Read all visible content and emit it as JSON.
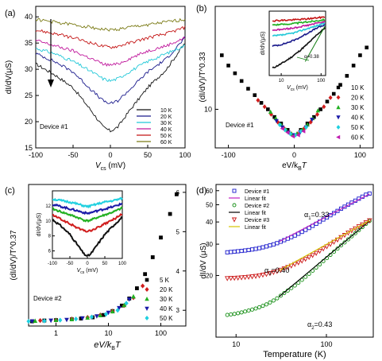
{
  "chart_data": [
    {
      "panel": "(a)",
      "type": "line",
      "xlabel_main": "V",
      "xlabel_sub": "cs",
      "xlabel_unit": " (mV)",
      "ylabel": "dI/dV(μS)",
      "xlim": [
        -100,
        100
      ],
      "ylim": [
        15,
        42
      ],
      "xticks": [
        -100,
        -50,
        0,
        50,
        100
      ],
      "yticks": [
        15,
        20,
        25,
        30,
        35,
        40
      ],
      "annotation": "Device #1",
      "arrow": "downward arrow indicating decreasing temperature",
      "legend_position": "bottom-right",
      "series": [
        {
          "name": "10 K",
          "color": "#111111",
          "x": [
            -100,
            -75,
            -50,
            -25,
            -10,
            0,
            10,
            25,
            50,
            75,
            100
          ],
          "y": [
            31,
            29,
            26.5,
            22,
            19,
            18.2,
            19,
            22,
            26.5,
            30,
            35
          ]
        },
        {
          "name": "20 K",
          "color": "#1a1a8c",
          "x": [
            -100,
            -75,
            -50,
            -25,
            -10,
            0,
            10,
            25,
            50,
            75,
            100
          ],
          "y": [
            33,
            31.5,
            29.5,
            26,
            24,
            23.4,
            24,
            26,
            29.5,
            32,
            36
          ]
        },
        {
          "name": "30 K",
          "color": "#22c8d8",
          "x": [
            -100,
            -75,
            -50,
            -25,
            -10,
            0,
            10,
            25,
            50,
            75,
            100
          ],
          "y": [
            34,
            33,
            31.5,
            29.5,
            28.2,
            27.8,
            28.2,
            29.5,
            31.5,
            33,
            34.5
          ]
        },
        {
          "name": "40 K",
          "color": "#c0189c",
          "x": [
            -100,
            -75,
            -50,
            -25,
            -10,
            0,
            10,
            25,
            50,
            75,
            100
          ],
          "y": [
            35.5,
            34.5,
            33.5,
            32,
            31,
            30.8,
            31,
            32,
            33.5,
            34.5,
            36
          ]
        },
        {
          "name": "50 K",
          "color": "#c41414",
          "x": [
            -100,
            -75,
            -50,
            -25,
            -10,
            0,
            10,
            25,
            50,
            75,
            100
          ],
          "y": [
            37.5,
            36.8,
            36,
            35,
            34.4,
            34.2,
            34.4,
            35,
            36,
            36.8,
            38
          ]
        },
        {
          "name": "60 K",
          "color": "#7a7a14",
          "x": [
            -100,
            -75,
            -50,
            -25,
            -10,
            0,
            10,
            25,
            50,
            75,
            100
          ],
          "y": [
            39.5,
            39,
            38.5,
            38,
            37.6,
            37.5,
            37.6,
            38,
            38.5,
            39,
            39.5
          ]
        }
      ]
    },
    {
      "panel": "(b)",
      "type": "scatter",
      "ylabel": "(dI/dV)/T^0.33",
      "xlabel_main": "eV/k",
      "xlabel_sub": "B",
      "xlabel_tail": "T",
      "xlim": [
        -120,
        120
      ],
      "ylim": [
        7,
        18
      ],
      "xticks": [
        -100,
        0,
        100
      ],
      "yticks": [
        10
      ],
      "annotation": "Device #1",
      "legend_position": "right",
      "series": [
        {
          "name": "10 K",
          "color": "#000000",
          "marker": "square",
          "x": [
            -110,
            -100,
            -90,
            -80,
            -70,
            -60,
            -50,
            -40,
            -30,
            -20,
            -10,
            0,
            10,
            20,
            30,
            40,
            50,
            60,
            70,
            80,
            90,
            100,
            110
          ],
          "y": [
            14.2,
            13.4,
            12.8,
            12.2,
            11.6,
            11.1,
            10.5,
            10.0,
            9.4,
            8.9,
            8.4,
            8.0,
            8.4,
            8.9,
            9.4,
            10.0,
            10.6,
            11.2,
            11.9,
            12.6,
            13.4,
            14.2,
            14.8
          ]
        },
        {
          "name": "20 K",
          "color": "#d01c1c",
          "marker": "diamond",
          "x": [
            -55,
            -45,
            -35,
            -25,
            -15,
            -5,
            5,
            15,
            25,
            35,
            45,
            55
          ],
          "y": [
            10.7,
            10.2,
            9.6,
            9.0,
            8.5,
            8.1,
            8.1,
            8.5,
            9.0,
            9.6,
            10.2,
            10.9
          ]
        },
        {
          "name": "30 K",
          "color": "#20b020",
          "marker": "triangle-up",
          "x": [
            -36,
            -28,
            -20,
            -12,
            -4,
            4,
            12,
            20,
            28,
            36
          ],
          "y": [
            9.8,
            9.3,
            8.8,
            8.4,
            8.1,
            8.1,
            8.4,
            8.8,
            9.3,
            9.9
          ]
        },
        {
          "name": "40 K",
          "color": "#1a1aa8",
          "marker": "triangle-down",
          "x": [
            -27,
            -18,
            -9,
            0,
            9,
            18,
            27
          ],
          "y": [
            9.1,
            8.6,
            8.2,
            8.0,
            8.2,
            8.6,
            9.2
          ]
        },
        {
          "name": "50 K",
          "color": "#20d0e0",
          "marker": "diamond",
          "x": [
            -22,
            -14,
            -6,
            2,
            10,
            18
          ],
          "y": [
            8.8,
            8.4,
            8.1,
            8.0,
            8.3,
            8.6
          ]
        },
        {
          "name": "60 K",
          "color": "#c01cb0",
          "marker": "triangle-left",
          "x": [
            -18,
            -10,
            -2,
            6,
            14
          ],
          "y": [
            8.5,
            8.2,
            7.9,
            8.0,
            8.3
          ]
        }
      ],
      "inset": {
        "type": "line",
        "xscale": "log",
        "yscale": "log",
        "xlim": [
          5,
          130
        ],
        "ylim": [
          12,
          45
        ],
        "xticks": [
          10,
          100
        ],
        "ylabel": "dI/dV(μS)",
        "xlabel_main": "V",
        "xlabel_sub": "cs",
        "xlabel_unit": " (mV)",
        "fit_label": "α=0.38",
        "fit_color": "#107c10",
        "series": [
          {
            "color": "#111111",
            "y": [
              14,
              15,
              16.5,
              18.5,
              21,
              24,
              28,
              32
            ]
          },
          {
            "color": "#1a1a8c",
            "y": [
              22,
              22.5,
              23.5,
              25,
              27,
              29.5,
              32,
              34
            ]
          },
          {
            "color": "#22c8d8",
            "y": [
              27,
              27.4,
              28,
              29,
              30.5,
              32,
              33.5,
              35
            ]
          },
          {
            "color": "#c0189c",
            "y": [
              30.5,
              30.8,
              31.3,
              32,
              33,
              34,
              35.2,
              36.5
            ]
          },
          {
            "color": "#20b020",
            "y": [
              34,
              34.2,
              34.5,
              35,
              35.6,
              36.3,
              37,
              38
            ]
          },
          {
            "color": "#c41414",
            "y": [
              37,
              37.2,
              37.4,
              37.7,
              38.1,
              38.6,
              39.2,
              40
            ]
          }
        ]
      }
    },
    {
      "panel": "(c)",
      "type": "scatter",
      "ylabel": "(dI/dV)/T^0.37",
      "xlabel_main": "eV/k",
      "xlabel_sub": "B",
      "xlabel_tail": "T",
      "xscale": "log",
      "xlim": [
        0.3,
        300
      ],
      "ylim": [
        2.6,
        6.2
      ],
      "xticks": [
        1,
        10,
        100
      ],
      "yticks": [
        3,
        4,
        5,
        6
      ],
      "annotation": "Device #2",
      "legend_position": "bottom-right",
      "series": [
        {
          "name": "5 K",
          "color": "#000000",
          "marker": "square",
          "x": [
            0.35,
            0.6,
            1,
            2,
            3,
            5,
            8,
            12,
            18,
            25,
            35,
            50,
            70,
            100,
            150,
            200
          ],
          "y": [
            2.72,
            2.74,
            2.75,
            2.77,
            2.79,
            2.82,
            2.88,
            2.98,
            3.12,
            3.3,
            3.56,
            3.92,
            4.35,
            4.85,
            5.45,
            5.95
          ]
        },
        {
          "name": "20 K",
          "color": "#d01c1c",
          "marker": "diamond",
          "x": [
            0.5,
            1,
            2,
            4,
            7,
            12,
            20,
            30,
            45
          ],
          "y": [
            2.74,
            2.75,
            2.78,
            2.82,
            2.88,
            2.98,
            3.12,
            3.32,
            3.62
          ]
        },
        {
          "name": "30 K",
          "color": "#20b020",
          "marker": "triangle-up",
          "x": [
            0.4,
            1,
            2,
            4,
            7,
            12,
            20,
            30
          ],
          "y": [
            2.73,
            2.75,
            2.77,
            2.81,
            2.87,
            2.97,
            3.13,
            3.35
          ]
        },
        {
          "name": "40 K",
          "color": "#1a1aa8",
          "marker": "triangle-down",
          "x": [
            0.35,
            0.8,
            1.6,
            3.2,
            6,
            10,
            16,
            25
          ],
          "y": [
            2.72,
            2.74,
            2.76,
            2.8,
            2.85,
            2.94,
            3.06,
            3.28
          ]
        },
        {
          "name": "50 K",
          "color": "#20d0e0",
          "marker": "diamond",
          "x": [
            0.3,
            0.6,
            1.2,
            2.4,
            4.8,
            9,
            15,
            22
          ],
          "y": [
            2.72,
            2.73,
            2.75,
            2.78,
            2.83,
            2.9,
            3.0,
            3.18
          ]
        }
      ],
      "inset": {
        "type": "line",
        "xlim": [
          -100,
          100
        ],
        "ylim": [
          5,
          14
        ],
        "xticks": [
          -100,
          -50,
          0,
          50,
          100
        ],
        "yticks": [
          6,
          8,
          10,
          12
        ],
        "ylabel": "dI/dV(μS)",
        "xlabel_main": "V",
        "xlabel_sub": "cs",
        "xlabel_unit": " (mV)",
        "series": [
          {
            "color": "#111111",
            "x": [
              -100,
              -75,
              -50,
              -25,
              -10,
              0,
              10,
              25,
              50,
              75,
              100
            ],
            "y": [
              10.2,
              9.3,
              8.2,
              6.6,
              5.6,
              5.3,
              5.6,
              6.6,
              8.2,
              9.4,
              10.5
            ]
          },
          {
            "color": "#d01c1c",
            "x": [
              -100,
              -75,
              -50,
              -25,
              -10,
              0,
              10,
              25,
              50,
              75,
              100
            ],
            "y": [
              10.8,
              10.2,
              9.6,
              9.0,
              8.7,
              8.6,
              8.7,
              9.0,
              9.6,
              10.2,
              10.9
            ]
          },
          {
            "color": "#20b020",
            "x": [
              -100,
              -75,
              -50,
              -25,
              -10,
              0,
              10,
              25,
              50,
              75,
              100
            ],
            "y": [
              11.6,
              11.2,
              10.8,
              10.4,
              10.1,
              10.0,
              10.1,
              10.4,
              10.8,
              11.2,
              11.7
            ]
          },
          {
            "color": "#1a1aa8",
            "x": [
              -100,
              -75,
              -50,
              -25,
              -10,
              0,
              10,
              25,
              50,
              75,
              100
            ],
            "y": [
              12.2,
              11.9,
              11.6,
              11.3,
              11.1,
              11.0,
              11.1,
              11.3,
              11.6,
              11.9,
              12.3
            ]
          },
          {
            "color": "#20d0e0",
            "x": [
              -100,
              -75,
              -50,
              -25,
              -10,
              0,
              10,
              25,
              50,
              75,
              100
            ],
            "y": [
              12.9,
              12.7,
              12.5,
              12.2,
              12.0,
              11.9,
              12.0,
              12.2,
              12.5,
              12.7,
              13.0
            ]
          }
        ]
      }
    },
    {
      "panel": "(d)",
      "type": "scatter",
      "ylabel": "dI/dV (μS)",
      "xlabel": "Temperature (K)",
      "xscale": "log",
      "yscale": "log",
      "xlim": [
        6,
        330
      ],
      "ylim": [
        9,
        65
      ],
      "xticks": [
        10,
        100
      ],
      "yticks": [
        20,
        30,
        40,
        50,
        60
      ],
      "legend_position": "top",
      "series": [
        {
          "name": "Device #1",
          "color": "#1a1acc",
          "marker": "square-open",
          "x": [
            8,
            10,
            13,
            17,
            22,
            28,
            35,
            45,
            57,
            72,
            90,
            115,
            145,
            180,
            220,
            270,
            300
          ],
          "y": [
            27,
            27.3,
            27.7,
            28.3,
            29.2,
            30.3,
            31.8,
            33.6,
            35.8,
            38.3,
            41,
            44.2,
            47.5,
            50.6,
            53.5,
            56.8,
            57.8
          ]
        },
        {
          "name": "Linear fit",
          "color": "#c020c0",
          "kind": "fit",
          "x": [
            30,
            300
          ],
          "y": [
            31,
            57.5
          ]
        },
        {
          "name": "Device #2",
          "color": "#108c10",
          "marker": "circle-open",
          "x": [
            8,
            10,
            13,
            17,
            22,
            28,
            35,
            45,
            57,
            72,
            90,
            115,
            145,
            180,
            220,
            270,
            300
          ],
          "y": [
            12,
            12.2,
            12.6,
            13.1,
            13.8,
            14.8,
            16.1,
            17.6,
            19.4,
            21.5,
            23.8,
            26.6,
            29.5,
            32.4,
            35.4,
            38.8,
            40.5
          ]
        },
        {
          "name": "Linear fit",
          "color": "#000000",
          "kind": "fit",
          "x": [
            30,
            300
          ],
          "y": [
            15.2,
            40.5
          ]
        },
        {
          "name": "Device #3",
          "color": "#cc1a1a",
          "marker": "triangle-down-open",
          "x": [
            8,
            10,
            13,
            17,
            22,
            28,
            35,
            45,
            57,
            72,
            90,
            115,
            145,
            180,
            220,
            270,
            300
          ],
          "y": [
            19.3,
            19.4,
            19.6,
            19.9,
            20.4,
            21.1,
            22,
            23.2,
            24.6,
            26.2,
            28.1,
            30.4,
            32.8,
            35.2,
            37.4,
            39.6,
            40.8
          ]
        },
        {
          "name": "Linear fit",
          "color": "#d4c400",
          "kind": "fit",
          "x": [
            30,
            300
          ],
          "y": [
            21.3,
            40.8
          ]
        }
      ],
      "annotations": [
        {
          "text_main": "α",
          "text_sub": "1",
          "text_tail": "=0.33",
          "color": "#1a1acc"
        },
        {
          "text_main": "α",
          "text_sub": "3",
          "text_tail": "=0.40",
          "color": "#cc1a1a"
        },
        {
          "text_main": "α",
          "text_sub": "2",
          "text_tail": "=0.43",
          "color": "#108c10"
        }
      ]
    }
  ]
}
